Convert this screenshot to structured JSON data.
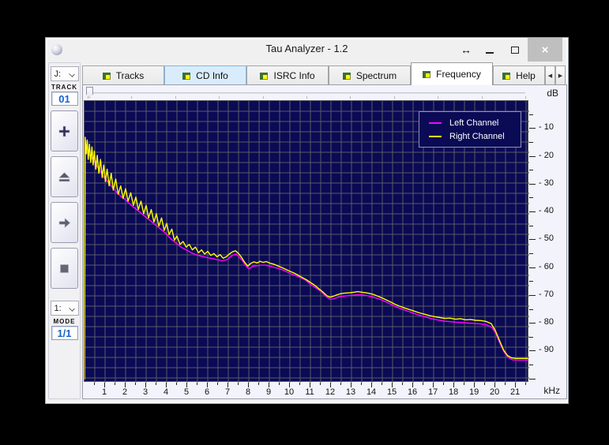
{
  "titlebar": {
    "title": "Tau Analyzer - 1.2",
    "buttons": [
      {
        "name": "resize-horizontal",
        "glyph": "↔"
      },
      {
        "name": "minimize",
        "glyph": ""
      },
      {
        "name": "maximize",
        "glyph": ""
      },
      {
        "name": "close",
        "glyph": "×"
      }
    ]
  },
  "tabs": [
    {
      "label": "Tracks",
      "state": "normal"
    },
    {
      "label": "CD Info",
      "state": "highlight"
    },
    {
      "label": "ISRC Info",
      "state": "normal"
    },
    {
      "label": "Spectrum",
      "state": "normal"
    },
    {
      "label": "Frequency",
      "state": "active"
    },
    {
      "label": "Help",
      "state": "normal"
    }
  ],
  "tab_scroll": {
    "left_glyph": "◀",
    "right_glyph": "▶"
  },
  "sidebar": {
    "drive_select": {
      "value": "J:"
    },
    "track_label": "TRACK",
    "track_value": "01",
    "buttons": [
      {
        "name": "add-button",
        "icon": "plus-icon"
      },
      {
        "name": "eject-button",
        "icon": "eject-icon"
      },
      {
        "name": "next-button",
        "icon": "arrow-right-icon"
      },
      {
        "name": "stop-button",
        "icon": "stop-icon"
      }
    ],
    "mode_select": {
      "value": "1:"
    },
    "mode_label": "MODE",
    "mode_value": "1/1"
  },
  "axes": {
    "y_unit": "dB",
    "x_unit": "kHz",
    "x_tick_labels": [
      "1",
      "2",
      "3",
      "4",
      "5",
      "6",
      "7",
      "8",
      "9",
      "10",
      "11",
      "12",
      "13",
      "14",
      "15",
      "16",
      "17",
      "18",
      "19",
      "20",
      "21"
    ],
    "y_tick_labels": [
      "- 10",
      "- 20",
      "- 30",
      "- 40",
      "- 50",
      "- 60",
      "- 70",
      "- 80",
      "- 90"
    ]
  },
  "chart_data": {
    "type": "line",
    "xlabel": "kHz",
    "ylabel": "dB",
    "xlim": [
      0,
      21.65
    ],
    "ylim": [
      -101.2,
      0
    ],
    "grid": "square-13px",
    "legend_position": "top-right",
    "background": "#0a0a55",
    "grid_color": "#5b5b63",
    "series": [
      {
        "name": "Left Channel",
        "color": "#ff00ff",
        "points": [
          [
            0,
            -100
          ],
          [
            0.03,
            -14
          ],
          [
            0.1,
            -18.5
          ],
          [
            0.2,
            -19
          ],
          [
            0.35,
            -20.5
          ],
          [
            0.5,
            -22
          ],
          [
            0.65,
            -24
          ],
          [
            0.8,
            -25.5
          ],
          [
            1.0,
            -28
          ],
          [
            1.2,
            -29.5
          ],
          [
            1.4,
            -31.5
          ],
          [
            1.6,
            -33
          ],
          [
            1.8,
            -34.5
          ],
          [
            2.0,
            -35.5
          ],
          [
            2.2,
            -37
          ],
          [
            2.45,
            -38.5
          ],
          [
            2.7,
            -40
          ],
          [
            2.95,
            -41.5
          ],
          [
            3.2,
            -43
          ],
          [
            3.45,
            -44.5
          ],
          [
            3.7,
            -46
          ],
          [
            3.95,
            -47.5
          ],
          [
            4.2,
            -49.5
          ],
          [
            4.45,
            -51
          ],
          [
            4.7,
            -52.5
          ],
          [
            4.95,
            -53.5
          ],
          [
            5.2,
            -54.5
          ],
          [
            5.45,
            -55.3
          ],
          [
            5.7,
            -55.8
          ],
          [
            5.95,
            -56.2
          ],
          [
            6.2,
            -56.6
          ],
          [
            6.45,
            -57
          ],
          [
            6.7,
            -57.4
          ],
          [
            6.95,
            -57
          ],
          [
            7.1,
            -56
          ],
          [
            7.25,
            -55.3
          ],
          [
            7.38,
            -55
          ],
          [
            7.55,
            -56.2
          ],
          [
            7.7,
            -57.5
          ],
          [
            7.85,
            -59.2
          ],
          [
            8.0,
            -60.3
          ],
          [
            8.2,
            -59.4
          ],
          [
            8.4,
            -59.2
          ],
          [
            8.6,
            -59
          ],
          [
            8.8,
            -59
          ],
          [
            9.0,
            -59.3
          ],
          [
            9.25,
            -59.8
          ],
          [
            9.5,
            -60.3
          ],
          [
            9.75,
            -61
          ],
          [
            10.0,
            -61.9
          ],
          [
            10.25,
            -62.6
          ],
          [
            10.5,
            -63.4
          ],
          [
            10.75,
            -64.3
          ],
          [
            11.0,
            -65.9
          ],
          [
            11.25,
            -67.1
          ],
          [
            11.5,
            -68.4
          ],
          [
            11.75,
            -70.2
          ],
          [
            11.95,
            -71.3
          ],
          [
            12.15,
            -71
          ],
          [
            12.4,
            -70.4
          ],
          [
            12.65,
            -70.1
          ],
          [
            12.9,
            -69.9
          ],
          [
            13.15,
            -69.7
          ],
          [
            13.4,
            -69.6
          ],
          [
            13.65,
            -69.8
          ],
          [
            13.9,
            -70.2
          ],
          [
            14.15,
            -70.7
          ],
          [
            14.4,
            -71.3
          ],
          [
            14.65,
            -72.1
          ],
          [
            14.9,
            -73
          ],
          [
            15.15,
            -73.9
          ],
          [
            15.4,
            -74.6
          ],
          [
            15.7,
            -75.4
          ],
          [
            16.0,
            -76.2
          ],
          [
            16.3,
            -77
          ],
          [
            16.6,
            -77.6
          ],
          [
            16.9,
            -78.2
          ],
          [
            17.2,
            -78.7
          ],
          [
            17.5,
            -79.1
          ],
          [
            17.8,
            -79.3
          ],
          [
            18.1,
            -79.5
          ],
          [
            18.4,
            -79.6
          ],
          [
            18.7,
            -79.8
          ],
          [
            19.0,
            -79.9
          ],
          [
            19.3,
            -80.1
          ],
          [
            19.6,
            -80.5
          ],
          [
            19.85,
            -81.5
          ],
          [
            20.05,
            -84
          ],
          [
            20.25,
            -87.5
          ],
          [
            20.45,
            -90.5
          ],
          [
            20.65,
            -92.3
          ],
          [
            20.85,
            -93
          ],
          [
            21.1,
            -93.1
          ],
          [
            21.6,
            -93.1
          ]
        ]
      },
      {
        "name": "Right Channel",
        "color": "#ffff00",
        "points": [
          [
            0,
            -100
          ],
          [
            0.03,
            -13
          ],
          [
            0.08,
            -19
          ],
          [
            0.13,
            -14
          ],
          [
            0.18,
            -21
          ],
          [
            0.24,
            -15.5
          ],
          [
            0.3,
            -22
          ],
          [
            0.36,
            -16.5
          ],
          [
            0.42,
            -23
          ],
          [
            0.48,
            -18
          ],
          [
            0.55,
            -24.5
          ],
          [
            0.62,
            -19.5
          ],
          [
            0.7,
            -26
          ],
          [
            0.78,
            -21
          ],
          [
            0.86,
            -27.5
          ],
          [
            0.94,
            -23
          ],
          [
            1.02,
            -29
          ],
          [
            1.1,
            -24.5
          ],
          [
            1.2,
            -30.5
          ],
          [
            1.3,
            -26
          ],
          [
            1.4,
            -32
          ],
          [
            1.52,
            -28
          ],
          [
            1.64,
            -33.5
          ],
          [
            1.76,
            -30.5
          ],
          [
            1.88,
            -35
          ],
          [
            2.0,
            -31.5
          ],
          [
            2.12,
            -36
          ],
          [
            2.25,
            -33
          ],
          [
            2.38,
            -37.5
          ],
          [
            2.5,
            -34.5
          ],
          [
            2.62,
            -39
          ],
          [
            2.75,
            -36
          ],
          [
            2.88,
            -40.5
          ],
          [
            3.0,
            -37.5
          ],
          [
            3.12,
            -42
          ],
          [
            3.25,
            -39
          ],
          [
            3.38,
            -43.5
          ],
          [
            3.5,
            -40.5
          ],
          [
            3.62,
            -45
          ],
          [
            3.75,
            -42
          ],
          [
            3.88,
            -46.5
          ],
          [
            4.0,
            -44
          ],
          [
            4.12,
            -48
          ],
          [
            4.25,
            -46
          ],
          [
            4.38,
            -50
          ],
          [
            4.5,
            -48.5
          ],
          [
            4.65,
            -51.5
          ],
          [
            4.8,
            -50.5
          ],
          [
            4.95,
            -52.5
          ],
          [
            5.1,
            -51.5
          ],
          [
            5.25,
            -53.5
          ],
          [
            5.4,
            -52.5
          ],
          [
            5.55,
            -54.5
          ],
          [
            5.7,
            -53.5
          ],
          [
            5.85,
            -55
          ],
          [
            6.0,
            -54
          ],
          [
            6.15,
            -55.5
          ],
          [
            6.3,
            -54.8
          ],
          [
            6.45,
            -56
          ],
          [
            6.6,
            -55.2
          ],
          [
            6.75,
            -56.5
          ],
          [
            6.9,
            -56
          ],
          [
            7.05,
            -55
          ],
          [
            7.2,
            -54.2
          ],
          [
            7.35,
            -53.8
          ],
          [
            7.5,
            -54.8
          ],
          [
            7.65,
            -56.2
          ],
          [
            7.8,
            -58
          ],
          [
            7.95,
            -59.3
          ],
          [
            8.1,
            -58.3
          ],
          [
            8.25,
            -57.8
          ],
          [
            8.4,
            -58.2
          ],
          [
            8.55,
            -57.6
          ],
          [
            8.7,
            -58
          ],
          [
            8.85,
            -57.7
          ],
          [
            9.0,
            -58.2
          ],
          [
            9.2,
            -58.6
          ],
          [
            9.4,
            -59.2
          ],
          [
            9.6,
            -59.8
          ],
          [
            9.8,
            -60.5
          ],
          [
            10.0,
            -61.2
          ],
          [
            10.2,
            -61.8
          ],
          [
            10.4,
            -62.6
          ],
          [
            10.6,
            -63.4
          ],
          [
            10.8,
            -64.2
          ],
          [
            11.0,
            -65.2
          ],
          [
            11.2,
            -66.2
          ],
          [
            11.4,
            -67.4
          ],
          [
            11.6,
            -68.6
          ],
          [
            11.8,
            -70
          ],
          [
            11.95,
            -70.5
          ],
          [
            12.1,
            -70.2
          ],
          [
            12.3,
            -69.6
          ],
          [
            12.5,
            -69.2
          ],
          [
            12.7,
            -69
          ],
          [
            12.9,
            -68.9
          ],
          [
            13.1,
            -68.7
          ],
          [
            13.3,
            -68.5
          ],
          [
            13.5,
            -68.7
          ],
          [
            13.7,
            -68.9
          ],
          [
            13.9,
            -69.2
          ],
          [
            14.1,
            -69.6
          ],
          [
            14.3,
            -70.2
          ],
          [
            14.5,
            -70.8
          ],
          [
            14.7,
            -71.5
          ],
          [
            14.9,
            -72.2
          ],
          [
            15.1,
            -73
          ],
          [
            15.3,
            -73.6
          ],
          [
            15.55,
            -74.3
          ],
          [
            15.8,
            -74.9
          ],
          [
            16.05,
            -75.5
          ],
          [
            16.3,
            -76.1
          ],
          [
            16.55,
            -76.6
          ],
          [
            16.8,
            -77.1
          ],
          [
            17.05,
            -77.5
          ],
          [
            17.3,
            -77.8
          ],
          [
            17.55,
            -78.1
          ],
          [
            17.8,
            -78
          ],
          [
            18.05,
            -78.4
          ],
          [
            18.3,
            -78.2
          ],
          [
            18.55,
            -78.6
          ],
          [
            18.8,
            -78.5
          ],
          [
            19.05,
            -78.8
          ],
          [
            19.3,
            -78.9
          ],
          [
            19.55,
            -79.2
          ],
          [
            19.8,
            -80
          ],
          [
            20.0,
            -82.5
          ],
          [
            20.2,
            -86
          ],
          [
            20.4,
            -89.5
          ],
          [
            20.6,
            -91.5
          ],
          [
            20.8,
            -92.3
          ],
          [
            21.0,
            -92.5
          ],
          [
            21.3,
            -92.5
          ],
          [
            21.6,
            -92.5
          ]
        ]
      }
    ]
  }
}
